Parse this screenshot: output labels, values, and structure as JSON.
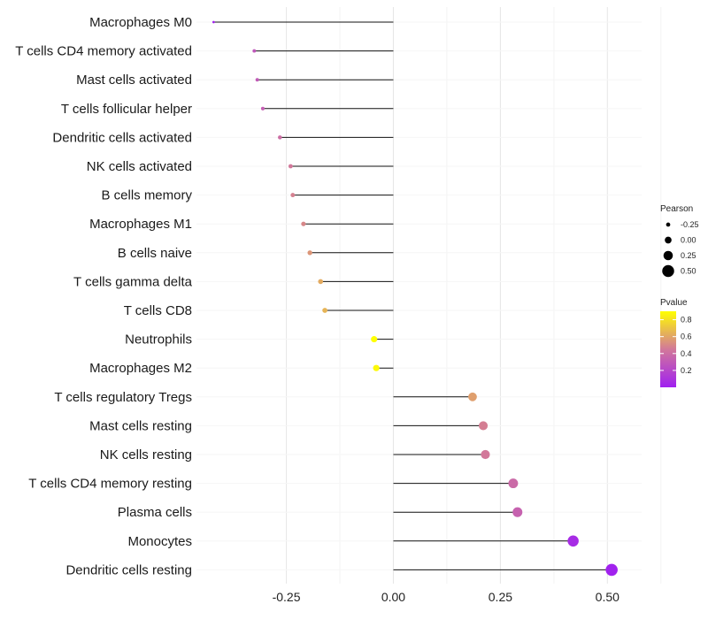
{
  "chart_data": {
    "type": "lollipop",
    "categories": [
      "Macrophages M0",
      "T cells CD4 memory activated",
      "Mast cells activated",
      "T cells follicular helper",
      "Dendritic cells activated",
      "NK cells activated",
      "B cells memory",
      "Macrophages M1",
      "B cells naive",
      "T cells gamma delta",
      "T cells CD8",
      "Neutrophils",
      "Macrophages M2",
      "T cells regulatory  Tregs ",
      "Mast cells resting",
      "NK cells resting",
      "T cells CD4 memory resting",
      "Plasma cells",
      "Monocytes",
      "Dendritic cells resting"
    ],
    "pearson": [
      -0.42,
      -0.325,
      -0.318,
      -0.305,
      -0.265,
      -0.24,
      -0.235,
      -0.21,
      -0.195,
      -0.17,
      -0.16,
      -0.045,
      -0.04,
      0.185,
      0.21,
      0.215,
      0.28,
      0.29,
      0.42,
      0.51
    ],
    "pvalue": [
      0.01,
      0.28,
      0.3,
      0.32,
      0.4,
      0.45,
      0.48,
      0.5,
      0.55,
      0.62,
      0.65,
      0.9,
      0.88,
      0.58,
      0.47,
      0.45,
      0.38,
      0.34,
      0.06,
      0.01
    ],
    "xlim": [
      -0.46,
      0.58
    ],
    "x_ticks": [
      -0.25,
      0.0,
      0.25,
      0.5
    ],
    "x_tick_labels": [
      "-0.25",
      "0.00",
      "0.25",
      "0.50"
    ],
    "xlabel": "",
    "ylabel": "",
    "legend": {
      "size": {
        "title": "Pearson",
        "values": [
          -0.25,
          0.0,
          0.25,
          0.5
        ],
        "labels": [
          "-0.25",
          "0.00",
          "0.25",
          "0.50"
        ]
      },
      "color": {
        "title": "Pvalue",
        "breaks": [
          0.8,
          0.6,
          0.4,
          0.2
        ],
        "labels": [
          "0.8",
          "0.6",
          "0.4",
          "0.2"
        ],
        "range": [
          0.0,
          0.9
        ],
        "low_color": "#a020f0",
        "mid_color": "#d2789a",
        "high_color": "#ffff00"
      }
    }
  }
}
